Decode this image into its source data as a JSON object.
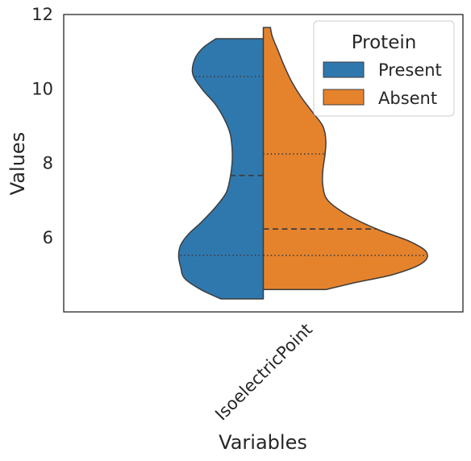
{
  "chart_data": {
    "type": "violin",
    "split": true,
    "xlabel": "Variables",
    "ylabel": "Values",
    "categories": [
      "IsoelectricPoint"
    ],
    "ylim": [
      4.0,
      12.0
    ],
    "yticks": [
      "6",
      "8",
      "10",
      "12"
    ],
    "legend": {
      "title": "Protein",
      "placement": "top-right",
      "entries": [
        "Present",
        "Absent"
      ]
    },
    "series": [
      {
        "name": "Present",
        "color": "#2f78ae",
        "range": [
          4.35,
          11.35
        ],
        "quartiles": {
          "q1": 5.52,
          "median": 7.67,
          "q3": 10.33
        },
        "density_profile": [
          [
            4.35,
            0.42
          ],
          [
            4.6,
            0.62
          ],
          [
            4.9,
            0.78
          ],
          [
            5.2,
            0.82
          ],
          [
            5.5,
            0.84
          ],
          [
            5.8,
            0.82
          ],
          [
            6.1,
            0.74
          ],
          [
            6.4,
            0.62
          ],
          [
            6.8,
            0.48
          ],
          [
            7.2,
            0.37
          ],
          [
            7.6,
            0.33
          ],
          [
            8.0,
            0.31
          ],
          [
            8.4,
            0.31
          ],
          [
            8.8,
            0.33
          ],
          [
            9.2,
            0.39
          ],
          [
            9.6,
            0.48
          ],
          [
            10.0,
            0.61
          ],
          [
            10.4,
            0.7
          ],
          [
            10.8,
            0.68
          ],
          [
            11.1,
            0.6
          ],
          [
            11.35,
            0.47
          ]
        ]
      },
      {
        "name": "Absent",
        "color": "#e5832c",
        "range": [
          4.6,
          11.65
        ],
        "quartiles": {
          "q1": 5.52,
          "median": 6.23,
          "q3": 8.25
        },
        "density_profile": [
          [
            4.6,
            0.62
          ],
          [
            4.8,
            0.93
          ],
          [
            5.0,
            1.28
          ],
          [
            5.3,
            1.57
          ],
          [
            5.6,
            1.62
          ],
          [
            5.9,
            1.45
          ],
          [
            6.2,
            1.15
          ],
          [
            6.6,
            0.84
          ],
          [
            7.0,
            0.64
          ],
          [
            7.4,
            0.59
          ],
          [
            7.8,
            0.59
          ],
          [
            8.2,
            0.61
          ],
          [
            8.6,
            0.62
          ],
          [
            9.0,
            0.59
          ],
          [
            9.4,
            0.48
          ],
          [
            9.8,
            0.37
          ],
          [
            10.2,
            0.28
          ],
          [
            10.6,
            0.21
          ],
          [
            11.0,
            0.15
          ],
          [
            11.4,
            0.09
          ],
          [
            11.65,
            0.07
          ]
        ]
      }
    ]
  }
}
